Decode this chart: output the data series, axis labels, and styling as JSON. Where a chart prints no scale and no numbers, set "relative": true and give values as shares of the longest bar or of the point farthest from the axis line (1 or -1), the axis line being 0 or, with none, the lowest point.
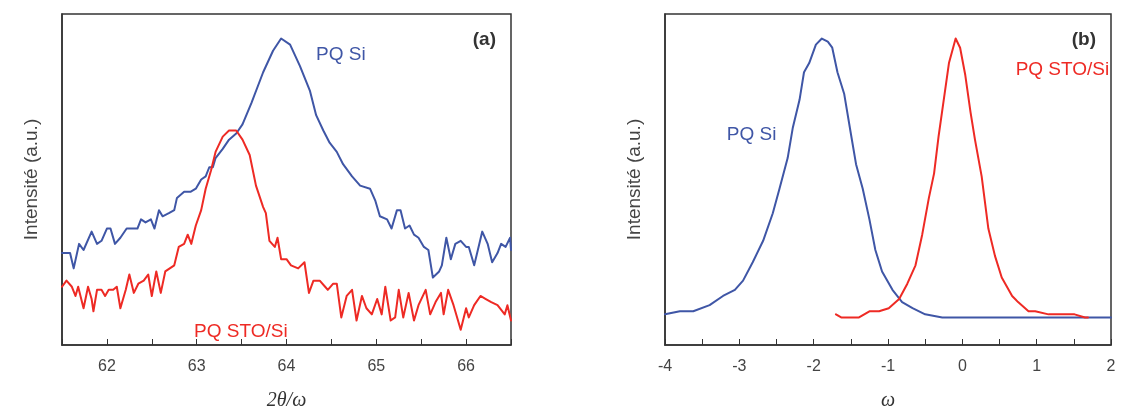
{
  "chart_data": [
    {
      "type": "line",
      "title": "(a)",
      "xlabel": "2θ/ω",
      "ylabel": "Intensité (a.u.)",
      "relative": true,
      "tick_labels": "x",
      "xlim": [
        61.5,
        66.5
      ],
      "xticks": [
        62,
        63,
        64,
        65,
        66
      ],
      "grid": false,
      "legend": false,
      "marker": "none",
      "line_style": "solid",
      "series": [
        {
          "name": "PQ Si",
          "color": "#3f56a6",
          "x": [
            61.5,
            61.59,
            61.63,
            61.69,
            61.74,
            61.83,
            61.89,
            61.94,
            62.0,
            62.04,
            62.09,
            62.15,
            62.22,
            62.3,
            62.34,
            62.38,
            62.43,
            62.49,
            62.53,
            62.58,
            62.62,
            62.69,
            62.75,
            62.78,
            62.86,
            62.93,
            62.99,
            63.05,
            63.1,
            63.14,
            63.18,
            63.21,
            63.29,
            63.36,
            63.44,
            63.51,
            63.61,
            63.74,
            63.85,
            63.94,
            64.04,
            64.15,
            64.26,
            64.33,
            64.41,
            64.48,
            64.56,
            64.63,
            64.73,
            64.82,
            64.93,
            64.99,
            65.04,
            65.12,
            65.17,
            65.23,
            65.27,
            65.32,
            65.37,
            65.42,
            65.47,
            65.53,
            65.58,
            65.63,
            65.7,
            65.73,
            65.78,
            65.83,
            65.88,
            65.94,
            66.0,
            66.03,
            66.09,
            66.18,
            66.24,
            66.29,
            66.35,
            66.39,
            66.44,
            66.49,
            66.5
          ],
          "values": [
            0.3,
            0.3,
            0.25,
            0.33,
            0.31,
            0.37,
            0.33,
            0.34,
            0.38,
            0.38,
            0.33,
            0.35,
            0.38,
            0.38,
            0.38,
            0.41,
            0.4,
            0.41,
            0.38,
            0.44,
            0.42,
            0.43,
            0.44,
            0.48,
            0.5,
            0.5,
            0.51,
            0.54,
            0.55,
            0.58,
            0.58,
            0.61,
            0.64,
            0.67,
            0.69,
            0.72,
            0.79,
            0.89,
            0.96,
            1,
            0.98,
            0.91,
            0.83,
            0.75,
            0.7,
            0.66,
            0.63,
            0.59,
            0.55,
            0.52,
            0.51,
            0.47,
            0.42,
            0.41,
            0.38,
            0.44,
            0.44,
            0.38,
            0.39,
            0.36,
            0.35,
            0.32,
            0.31,
            0.22,
            0.24,
            0.26,
            0.35,
            0.28,
            0.33,
            0.34,
            0.32,
            0.32,
            0.26,
            0.37,
            0.33,
            0.27,
            0.3,
            0.33,
            0.32,
            0.35,
            0.31
          ]
        },
        {
          "name": "PQ STO/Si",
          "color": "#ee2a24",
          "x": [
            61.5,
            61.55,
            61.61,
            61.65,
            61.68,
            61.74,
            61.79,
            61.83,
            61.85,
            61.89,
            61.94,
            61.98,
            62.02,
            62.07,
            62.11,
            62.15,
            62.21,
            62.25,
            62.3,
            62.35,
            62.41,
            62.46,
            62.5,
            62.55,
            62.6,
            62.65,
            62.75,
            62.8,
            62.86,
            62.9,
            62.94,
            62.99,
            63.05,
            63.1,
            63.16,
            63.21,
            63.29,
            63.36,
            63.44,
            63.51,
            63.59,
            63.66,
            63.74,
            63.77,
            63.81,
            63.87,
            63.9,
            63.94,
            64.0,
            64.05,
            64.13,
            64.2,
            64.25,
            64.3,
            64.37,
            64.43,
            64.46,
            64.52,
            64.56,
            64.61,
            64.67,
            64.73,
            64.78,
            64.84,
            64.89,
            64.95,
            65.01,
            65.06,
            65.1,
            65.16,
            65.21,
            65.25,
            65.3,
            65.36,
            65.42,
            65.47,
            65.55,
            65.6,
            65.66,
            65.72,
            65.75,
            65.8,
            65.86,
            65.94,
            66.0,
            66.03,
            66.09,
            66.16,
            66.22,
            66.28,
            66.35,
            66.43,
            66.46,
            66.5
          ],
          "values": [
            0.19,
            0.21,
            0.19,
            0.16,
            0.19,
            0.12,
            0.19,
            0.15,
            0.11,
            0.18,
            0.18,
            0.16,
            0.18,
            0.18,
            0.19,
            0.12,
            0.18,
            0.23,
            0.17,
            0.2,
            0.21,
            0.23,
            0.16,
            0.24,
            0.17,
            0.24,
            0.26,
            0.32,
            0.33,
            0.36,
            0.33,
            0.39,
            0.44,
            0.51,
            0.57,
            0.63,
            0.68,
            0.7,
            0.7,
            0.67,
            0.62,
            0.52,
            0.45,
            0.43,
            0.34,
            0.32,
            0.35,
            0.28,
            0.28,
            0.26,
            0.25,
            0.27,
            0.17,
            0.21,
            0.21,
            0.19,
            0.18,
            0.2,
            0.2,
            0.09,
            0.16,
            0.18,
            0.08,
            0.16,
            0.12,
            0.1,
            0.15,
            0.1,
            0.19,
            0.08,
            0.09,
            0.18,
            0.09,
            0.17,
            0.08,
            0.13,
            0.18,
            0.1,
            0.14,
            0.17,
            0.1,
            0.18,
            0.13,
            0.05,
            0.12,
            0.09,
            0.13,
            0.16,
            0.15,
            0.14,
            0.13,
            0.1,
            0.13,
            0.08
          ]
        }
      ]
    },
    {
      "type": "line",
      "title": "(b)",
      "xlabel": "ω",
      "ylabel": "Intensité (a.u.)",
      "relative": true,
      "tick_labels": "x",
      "xlim": [
        -4,
        2
      ],
      "xticks": [
        -4,
        -3,
        -2,
        -1,
        0,
        1,
        2
      ],
      "grid": false,
      "legend": false,
      "marker": "none",
      "line_style": "solid",
      "series": [
        {
          "name": "PQ Si",
          "color": "#3f56a6",
          "x": [
            -4,
            -3.8,
            -3.62,
            -3.4,
            -3.22,
            -3.06,
            -2.95,
            -2.82,
            -2.68,
            -2.55,
            -2.46,
            -2.35,
            -2.28,
            -2.19,
            -2.13,
            -2.06,
            -1.97,
            -1.89,
            -1.81,
            -1.75,
            -1.68,
            -1.59,
            -1.5,
            -1.43,
            -1.34,
            -1.25,
            -1.17,
            -1.08,
            -0.94,
            -0.81,
            -0.67,
            -0.5,
            -0.27,
            0.17,
            0.84,
            2
          ],
          "values": [
            0.1,
            0.11,
            0.11,
            0.13,
            0.16,
            0.18,
            0.21,
            0.27,
            0.34,
            0.43,
            0.51,
            0.61,
            0.71,
            0.8,
            0.89,
            0.92,
            0.98,
            1,
            0.99,
            0.97,
            0.89,
            0.82,
            0.69,
            0.59,
            0.51,
            0.41,
            0.31,
            0.24,
            0.18,
            0.14,
            0.12,
            0.1,
            0.09,
            0.09,
            0.09,
            0.09
          ]
        },
        {
          "name": "PQ STO/Si",
          "color": "#ee2a24",
          "x": [
            -1.7,
            -1.63,
            -1.39,
            -1.25,
            -1.12,
            -0.99,
            -0.85,
            -0.74,
            -0.63,
            -0.54,
            -0.45,
            -0.38,
            -0.32,
            -0.25,
            -0.18,
            -0.09,
            -0.03,
            0.04,
            0.11,
            0.17,
            0.26,
            0.35,
            0.44,
            0.53,
            0.67,
            0.75,
            0.89,
            0.98,
            1.16,
            1.51,
            1.65,
            1.69
          ],
          "values": [
            0.1,
            0.09,
            0.09,
            0.11,
            0.11,
            0.12,
            0.15,
            0.2,
            0.26,
            0.36,
            0.48,
            0.56,
            0.68,
            0.8,
            0.92,
            1,
            0.97,
            0.88,
            0.76,
            0.67,
            0.55,
            0.38,
            0.29,
            0.22,
            0.16,
            0.14,
            0.11,
            0.11,
            0.1,
            0.1,
            0.09,
            0.09
          ]
        }
      ]
    }
  ]
}
